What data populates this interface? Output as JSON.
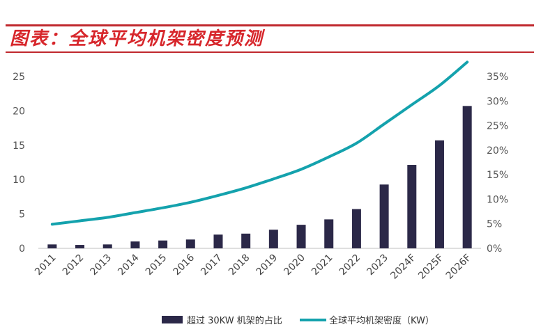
{
  "title": "图表：全球平均机架密度预测",
  "colors": {
    "title": "#d7262b",
    "rule": "#c0282d",
    "bar": "#2b2848",
    "line": "#14a2ad"
  },
  "chart_data": {
    "type": "bar",
    "categories": [
      "2011",
      "2012",
      "2013",
      "2014",
      "2015",
      "2016",
      "2017",
      "2018",
      "2019",
      "2020",
      "2021",
      "2022",
      "2023",
      "2024F",
      "2025F",
      "2026F"
    ],
    "series": [
      {
        "name": "超过 30KW 机架的占比",
        "type": "bar",
        "axis": "right",
        "values": [
          0.8,
          0.7,
          0.8,
          1.4,
          1.6,
          1.8,
          2.8,
          3.0,
          3.8,
          4.8,
          5.9,
          8.0,
          13.0,
          17.0,
          22.0,
          29.0
        ]
      },
      {
        "name": "全球平均机架密度（KW）",
        "type": "line",
        "axis": "left",
        "values": [
          3.5,
          4.0,
          4.5,
          5.2,
          5.9,
          6.7,
          7.7,
          8.8,
          10.1,
          11.5,
          13.3,
          15.3,
          18.1,
          20.9,
          23.7,
          27.1
        ]
      }
    ],
    "y_left": {
      "ticks": [
        "0",
        "5",
        "10",
        "15",
        "20",
        "25"
      ],
      "ylim": [
        0,
        25
      ]
    },
    "y_right": {
      "ticks": [
        "0%",
        "5%",
        "10%",
        "15%",
        "20%",
        "25%",
        "30%",
        "35%"
      ],
      "ylim": [
        0,
        35
      ]
    },
    "grid": false,
    "legend_position": "bottom"
  }
}
